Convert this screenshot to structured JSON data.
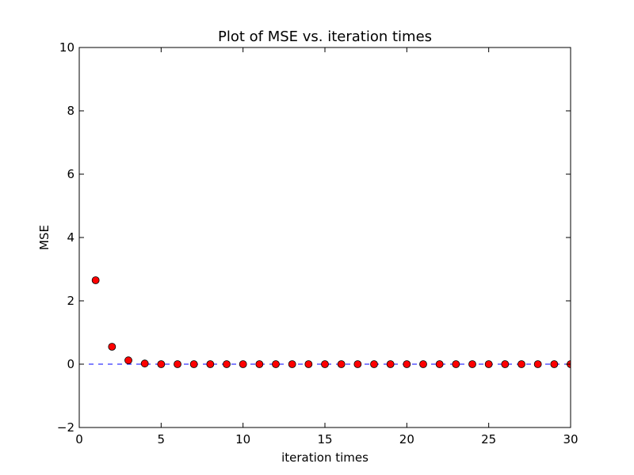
{
  "chart_data": {
    "type": "scatter",
    "title": "Plot of MSE vs. iteration times",
    "xlabel": "iteration times",
    "ylabel": "MSE",
    "xlim": [
      0,
      30
    ],
    "ylim": [
      -2,
      10
    ],
    "xticks": [
      0,
      5,
      10,
      15,
      20,
      25,
      30
    ],
    "yticks": [
      -2,
      0,
      2,
      4,
      6,
      8,
      10
    ],
    "xtick_labels": [
      "0",
      "5",
      "10",
      "15",
      "20",
      "25",
      "30"
    ],
    "ytick_labels": [
      "−2",
      "0",
      "2",
      "4",
      "6",
      "8",
      "10"
    ],
    "grid": false,
    "series": [
      {
        "marker_color": "#ff0000",
        "marker_edge_color": "#000000",
        "x": [
          1,
          2,
          3,
          4,
          5,
          6,
          7,
          8,
          9,
          10,
          11,
          12,
          13,
          14,
          15,
          16,
          17,
          18,
          19,
          20,
          21,
          22,
          23,
          24,
          25,
          26,
          27,
          28,
          29,
          30
        ],
        "y": [
          2.65,
          0.55,
          0.12,
          0.02,
          0.0,
          0.0,
          0.0,
          0.0,
          0.0,
          0.0,
          0.0,
          0.0,
          0.0,
          0.0,
          0.0,
          0.0,
          0.0,
          0.0,
          0.0,
          0.0,
          0.0,
          0.0,
          0.0,
          0.0,
          0.0,
          0.0,
          0.0,
          0.0,
          0.0,
          0.0
        ]
      }
    ],
    "reference_line": {
      "y": 0,
      "color": "#0000ff",
      "style": "dashed"
    }
  }
}
